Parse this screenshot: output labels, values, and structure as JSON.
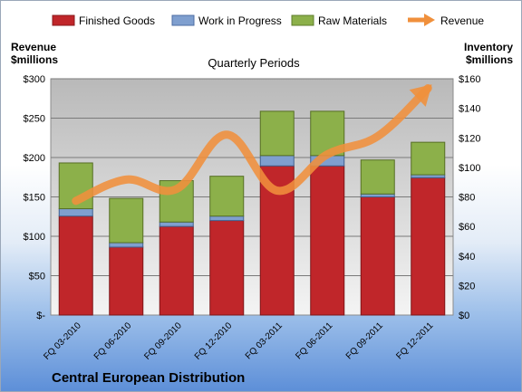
{
  "chart_data": {
    "type": "bar",
    "title": "Quarterly Periods",
    "footer_title": "Central European Distribution",
    "left_axis": {
      "label_line1": "Revenue",
      "label_line2": "$millions",
      "ylim": [
        0,
        300
      ],
      "ticks": [
        "$-",
        "$50",
        "$100",
        "$150",
        "$200",
        "$250",
        "$300"
      ]
    },
    "right_axis": {
      "label_line1": "Inventory",
      "label_line2": "$millions",
      "ylim": [
        0,
        160
      ],
      "ticks": [
        "$0",
        "$20",
        "$40",
        "$60",
        "$80",
        "$100",
        "$120",
        "$140",
        "$160"
      ]
    },
    "categories": [
      "FQ 03-2010",
      "FQ 06-2010",
      "FQ 09-2010",
      "FQ 12-2010",
      "FQ 03-2011",
      "FQ 06-2011",
      "FQ 09-2011",
      "FQ 12-2011"
    ],
    "series": [
      {
        "name": "Finished Goods",
        "kind": "stacked-bar",
        "axis": "right",
        "color": "#c0262a",
        "values": [
          67,
          46,
          60,
          64,
          101,
          101,
          80,
          93
        ]
      },
      {
        "name": "Work in Progress",
        "kind": "stacked-bar",
        "axis": "right",
        "color": "#7f9fcf",
        "values": [
          5,
          3,
          3,
          3,
          7,
          7,
          2,
          2
        ]
      },
      {
        "name": "Raw Materials",
        "kind": "stacked-bar",
        "axis": "right",
        "color": "#8cb04a",
        "values": [
          31,
          30,
          28,
          27,
          30,
          30,
          23,
          22
        ]
      },
      {
        "name": "Revenue",
        "kind": "line",
        "axis": "left",
        "color": "#f0903c",
        "values": [
          145,
          172,
          160,
          229,
          158,
          204,
          227,
          288
        ]
      }
    ],
    "grid": true,
    "legend_position": "top"
  }
}
